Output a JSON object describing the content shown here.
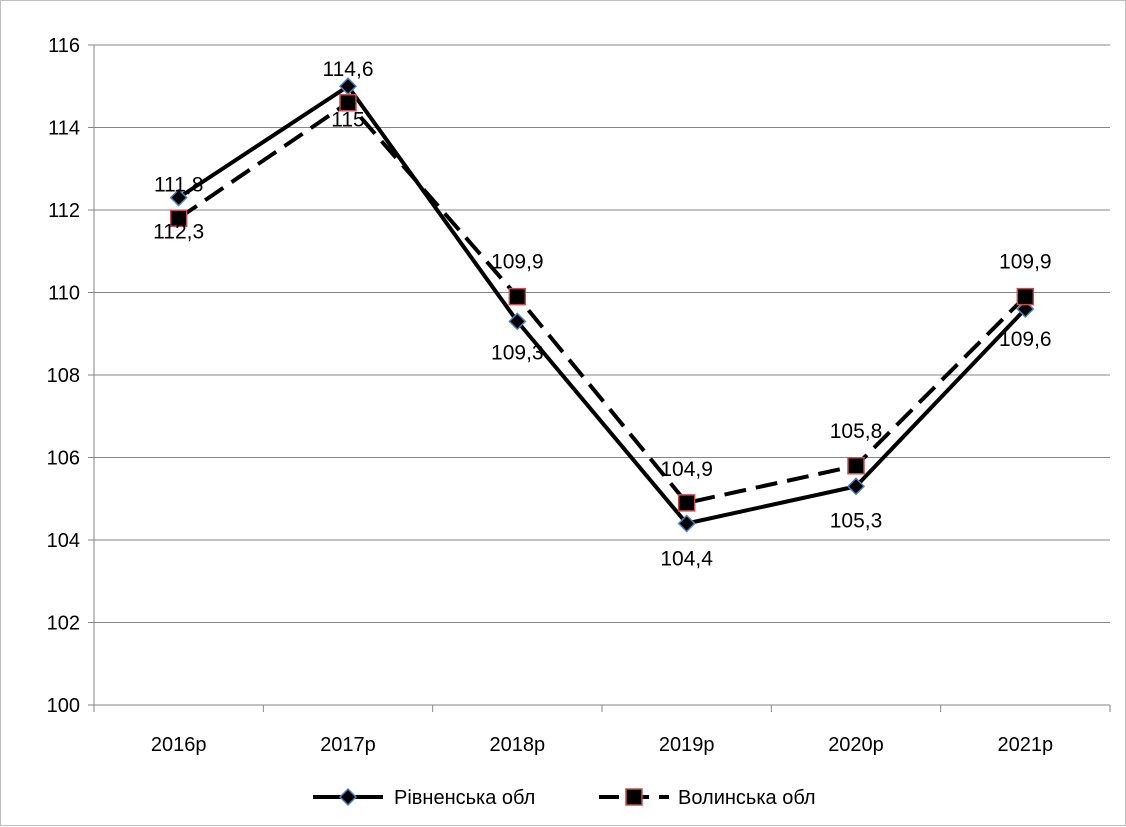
{
  "chart_data": {
    "type": "line",
    "title": "",
    "xlabel": "",
    "ylabel": "",
    "categories": [
      "2016р",
      "2017р",
      "2018р",
      "2019р",
      "2020р",
      "2021р"
    ],
    "ylim": [
      100,
      116
    ],
    "yticks": [
      "100",
      "102",
      "104",
      "106",
      "108",
      "110",
      "112",
      "114",
      "116"
    ],
    "grid": true,
    "legend_position": "bottom",
    "series": [
      {
        "name": "Рівненська обл",
        "values": [
          112.3,
          115,
          109.3,
          104.4,
          105.3,
          109.6
        ],
        "labels": [
          "112,3",
          "115",
          "109,3",
          "104,4",
          "105,3",
          "109,6"
        ],
        "line_style": "solid",
        "line_color": "#000000",
        "marker": "diamond",
        "marker_color": "#4f81bd"
      },
      {
        "name": "Волинська обл",
        "values": [
          111.8,
          114.6,
          109.9,
          104.9,
          105.8,
          109.9
        ],
        "labels": [
          "111,8",
          "114,6",
          "109,9",
          "104,9",
          "105,8",
          "109,9"
        ],
        "line_style": "dashed",
        "line_color": "#000000",
        "marker": "square",
        "marker_color": "#c0504d"
      }
    ]
  }
}
